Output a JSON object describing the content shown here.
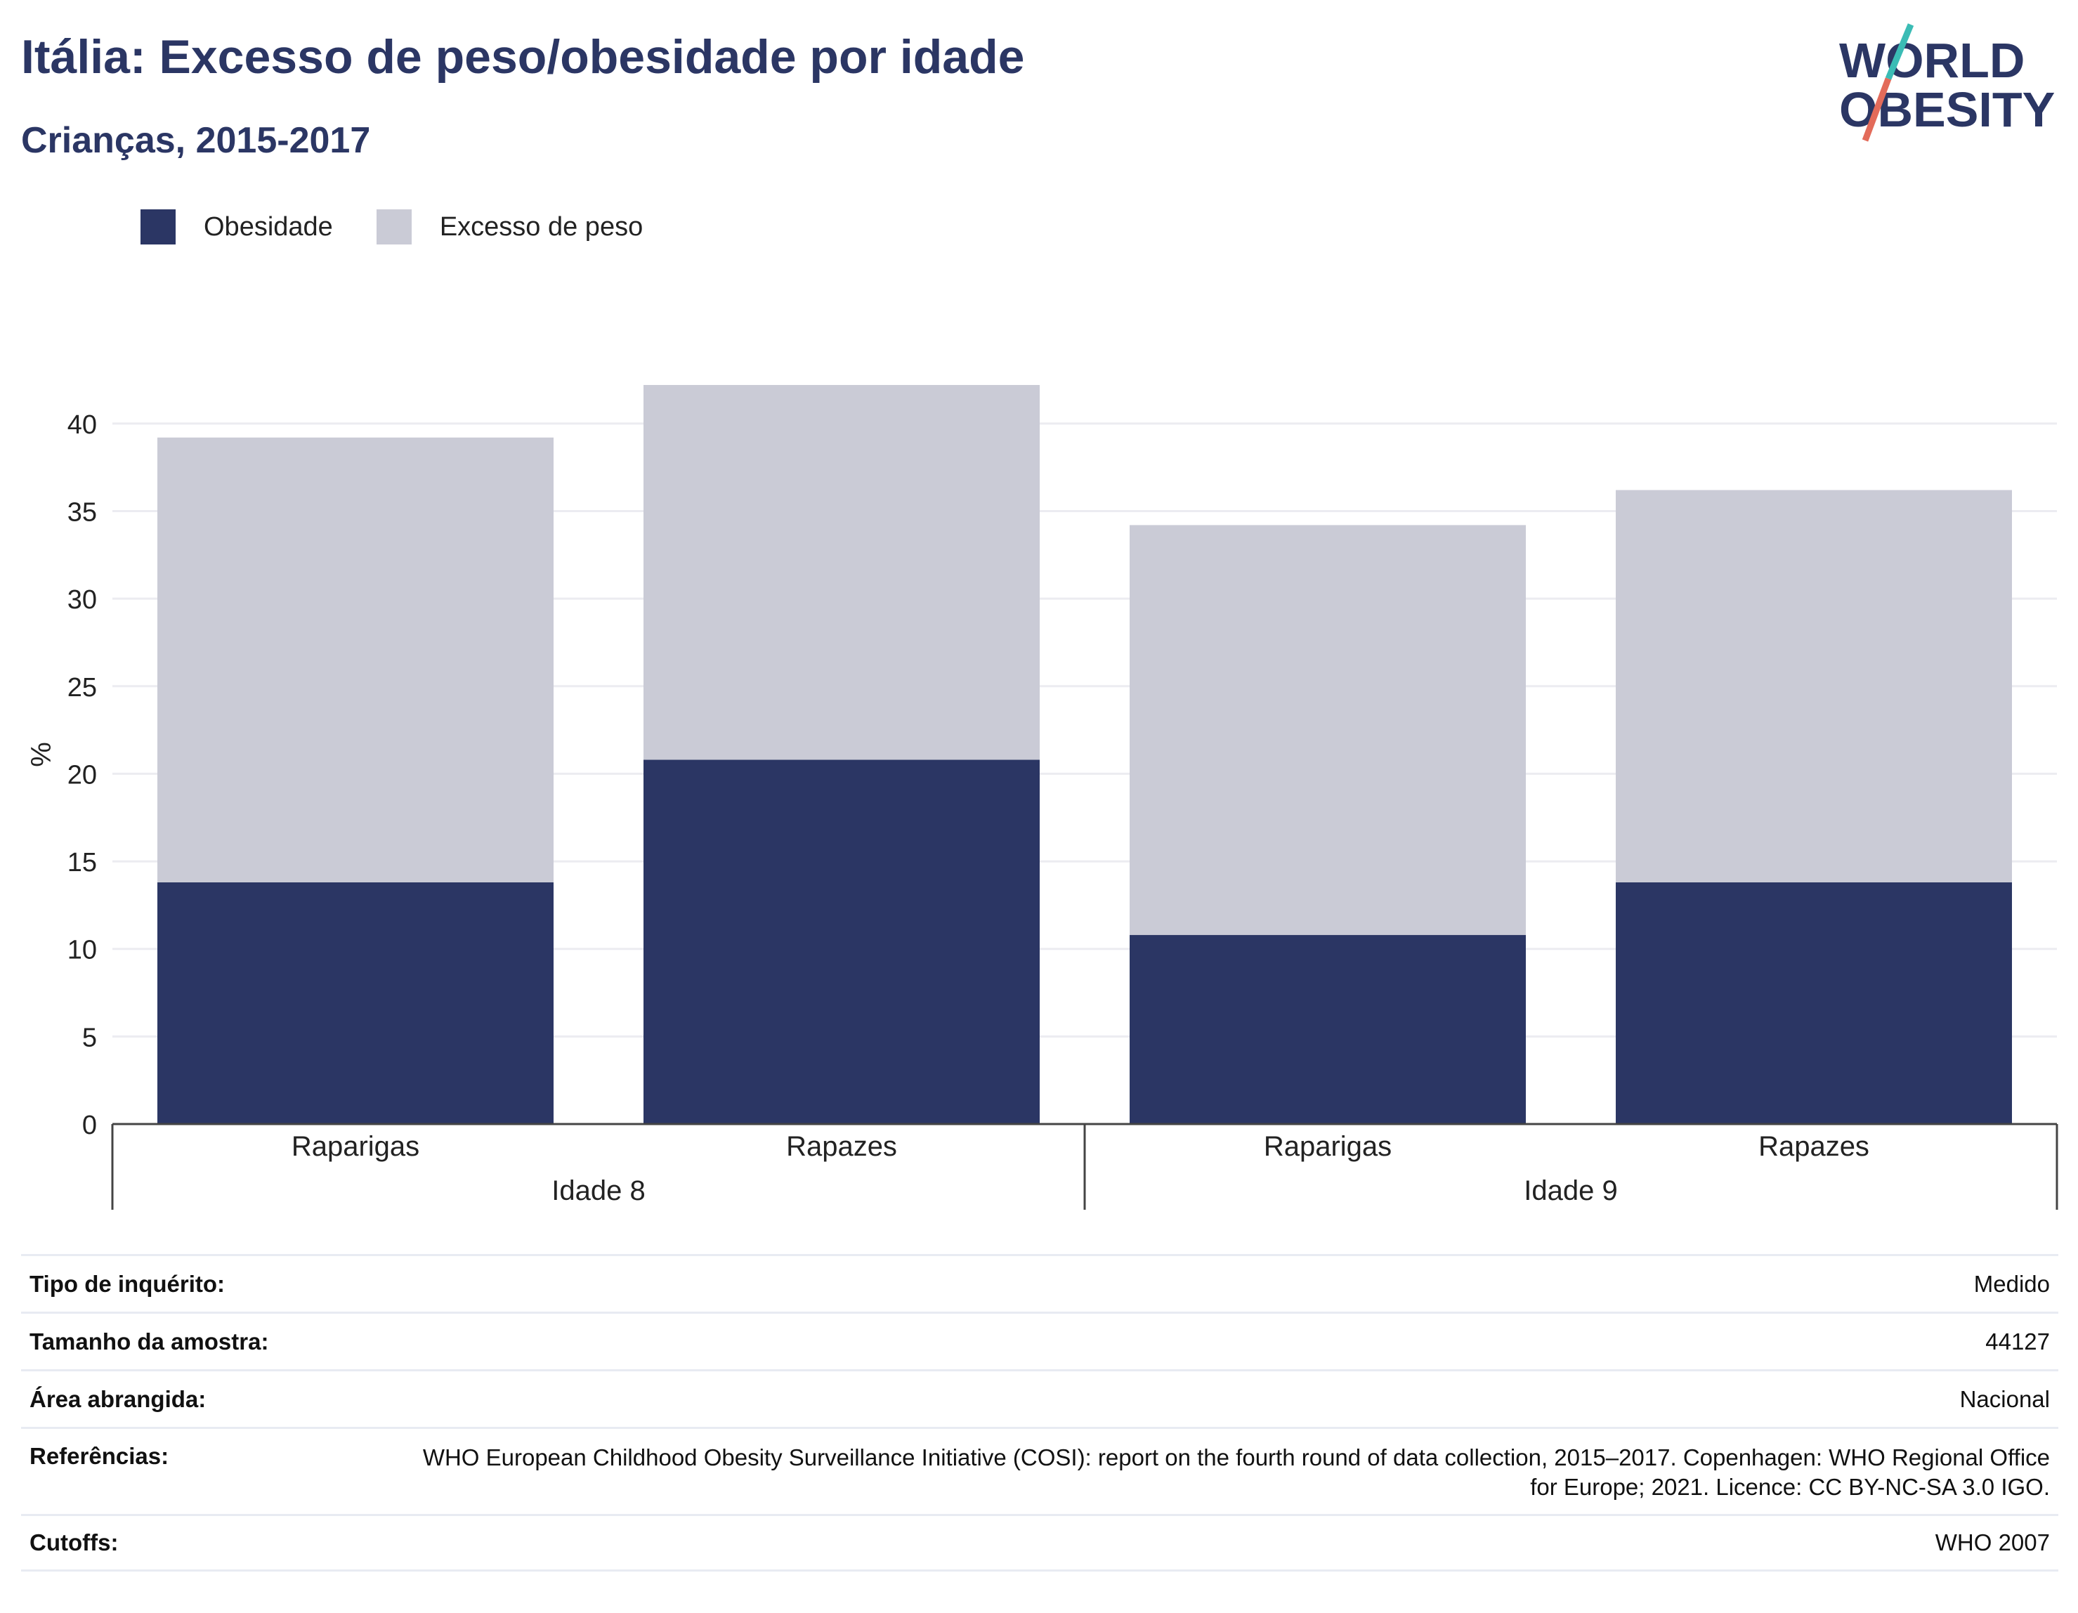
{
  "header": {
    "title": "Itália: Excesso de peso/obesidade por idade",
    "subtitle": "Crianças, 2015-2017"
  },
  "logo": {
    "line1": "WORLD",
    "line2": "OBESITY"
  },
  "colors": {
    "obesity": "#2b3664",
    "overweight": "#cacbd6",
    "accent_teal": "#3bbcb5",
    "accent_red": "#e36b5a"
  },
  "chart_data": {
    "type": "bar",
    "stacked": true,
    "ylabel": "%",
    "ylim": [
      0,
      42.2
    ],
    "yticks": [
      0,
      5,
      10,
      15,
      20,
      25,
      30,
      35,
      40
    ],
    "grid": true,
    "legend_position": "top-left",
    "groups": [
      {
        "label": "Idade 8",
        "categories": [
          "Raparigas",
          "Rapazes"
        ]
      },
      {
        "label": "Idade 9",
        "categories": [
          "Raparigas",
          "Rapazes"
        ]
      }
    ],
    "categories": [
      "Raparigas",
      "Rapazes",
      "Raparigas",
      "Rapazes"
    ],
    "series": [
      {
        "name": "Obesidade",
        "values": [
          13.8,
          20.8,
          10.8,
          13.8
        ]
      },
      {
        "name": "Excesso de peso",
        "values": [
          25.4,
          21.4,
          23.4,
          22.4
        ]
      }
    ]
  },
  "info": {
    "rows": [
      {
        "key": "Tipo de inquérito:",
        "value": "Medido"
      },
      {
        "key": "Tamanho da amostra:",
        "value": "44127"
      },
      {
        "key": "Área abrangida:",
        "value": "Nacional"
      },
      {
        "key": "Referências:",
        "value": "WHO European Childhood Obesity Surveillance Initiative (COSI): report on the fourth round of data collection, 2015–2017. Copenhagen: WHO Regional Office for Europe; 2021. Licence: CC BY-NC-SA 3.0 IGO."
      },
      {
        "key": "Cutoffs:",
        "value": "WHO 2007"
      }
    ]
  }
}
